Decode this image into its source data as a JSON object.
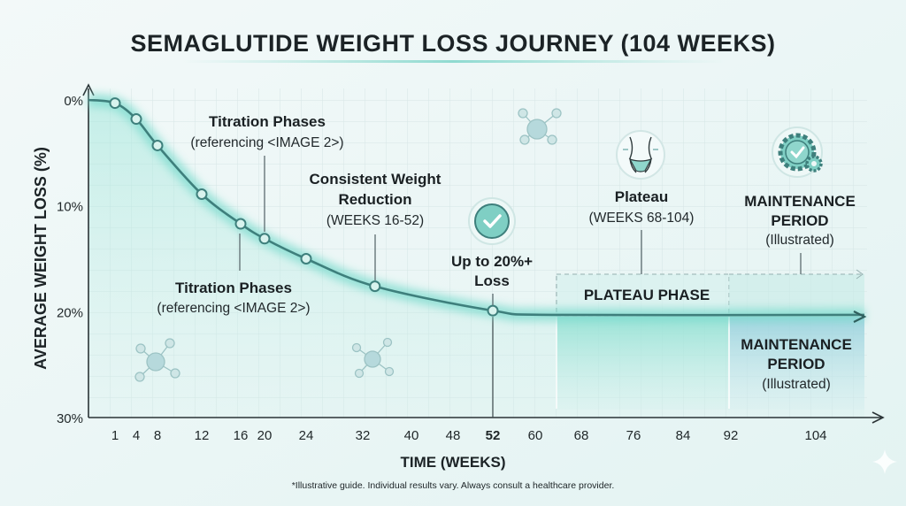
{
  "chart_data": {
    "type": "line",
    "title": "SEMAGLUTIDE WEIGHT LOSS JOURNEY (104 WEEKS)",
    "xlabel": "TIME (WEEKS)",
    "ylabel": "AVERAGE WEIGHT LOSS (%)",
    "x_ticks": [
      "1",
      "4",
      "8",
      "12",
      "16",
      "20",
      "24",
      "32",
      "40",
      "48",
      "52",
      "60",
      "68",
      "76",
      "84",
      "92",
      "104"
    ],
    "x_tick_highlight": "52",
    "y_ticks": [
      "0%",
      "10%",
      "20%",
      "30%"
    ],
    "ylim": [
      0,
      30
    ],
    "y_inverted": true,
    "grid": true,
    "series": [
      {
        "points": [
          {
            "x": 1,
            "y": 0.3
          },
          {
            "x": 4,
            "y": 1.8
          },
          {
            "x": 8,
            "y": 4.3
          },
          {
            "x": 12,
            "y": 8.9
          },
          {
            "x": 16,
            "y": 11.7
          },
          {
            "x": 20,
            "y": 13.1
          },
          {
            "x": 24,
            "y": 15.0
          },
          {
            "x": 34,
            "y": 17.6
          },
          {
            "x": 52,
            "y": 19.9
          }
        ],
        "continuation": [
          {
            "x": 64,
            "y": 20.3
          },
          {
            "x": 108,
            "y": 20.3
          }
        ],
        "color": "#3e7f7c",
        "glow_color": "#7fdccf"
      }
    ],
    "annotations": {
      "titration_top": {
        "title": "Titration Phases",
        "subtitle": "(referencing <IMAGE 2>)"
      },
      "titration_bottom": {
        "title": "Titration Phases",
        "subtitle": "(referencing <IMAGE 2>)"
      },
      "consistent": {
        "title_line1": "Consistent Weight",
        "title_line2": "Reduction",
        "subtitle": "(WEEKS 16-52)"
      },
      "peak": {
        "line1": "Up to 20%+",
        "line2": "Loss"
      },
      "plateau": {
        "title": "Plateau",
        "subtitle": "(WEEKS 68-104)"
      },
      "maintenance_top": {
        "line1": "MAINTENANCE",
        "line2": "PERIOD",
        "subtitle": "(Illustrated)"
      },
      "plateau_phase_box": "PLATEAU PHASE",
      "maintenance_region": {
        "line1": "MAINTENANCE",
        "line2": "PERIOD",
        "subtitle": "(Illustrated)"
      }
    },
    "footnote": "*Illustrative guide. Individual results vary. Always consult a healthcare provider.",
    "colors": {
      "accent": "#7fdccf",
      "line": "#3e7f7c",
      "plateau_fill": "#a8e6dc",
      "maintenance_fill": "#a9d6e0",
      "text": "#1c2326"
    },
    "icons": [
      "molecule-icon",
      "check-circle-icon",
      "waist-icon",
      "gear-check-icon",
      "sparkle-icon"
    ]
  }
}
